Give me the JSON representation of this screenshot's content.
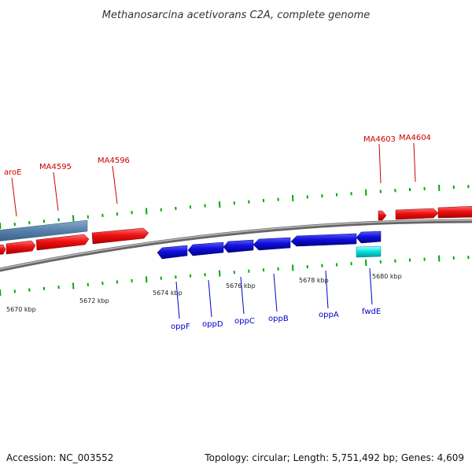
{
  "title": "Methanosarcina acetivorans C2A, complete genome",
  "footer": {
    "accession": "Accession: NC_003552",
    "summary": "Topology: circular; Length: 5,751,492 bp; Genes: 4,609"
  },
  "colors": {
    "forward_gene": "#ee0000",
    "reverse_gene": "#0000cc",
    "highlight_reverse_gene": "#00dddd",
    "operon_block": "#5588bb",
    "tick": "#00aa00",
    "backbone": "#888888",
    "forward_label": "#cc0000",
    "reverse_label": "#0000cc"
  },
  "scale_labels": [
    "5670 kbp",
    "5672 kbp",
    "5674 kbp",
    "5676 kbp",
    "5678 kbp",
    "5680 kbp"
  ],
  "forward_gene_labels": [
    "aroE",
    "MA4595",
    "MA4596",
    "MA4603",
    "MA4604"
  ],
  "reverse_gene_labels": [
    "oppF",
    "oppD",
    "oppC",
    "oppB",
    "oppA",
    "fwdE"
  ]
}
